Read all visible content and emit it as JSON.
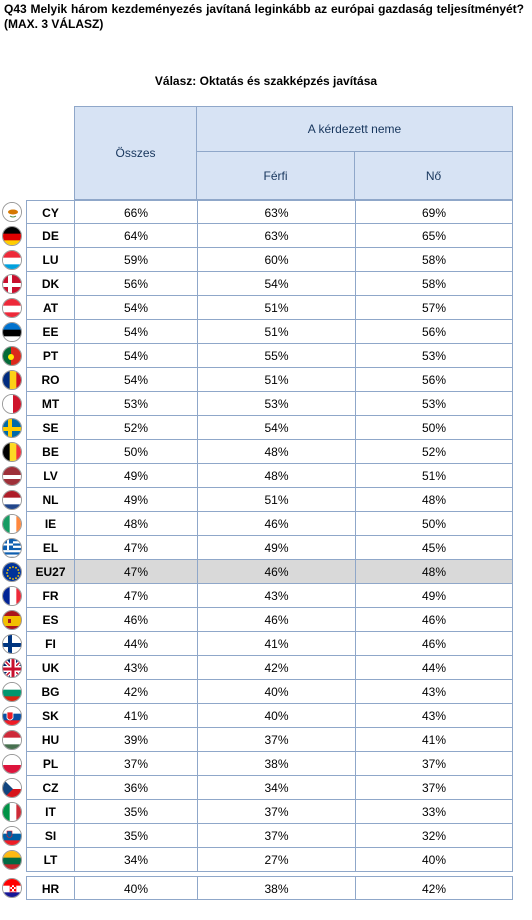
{
  "question": "Q43  Melyik  három  kezdeményezés  javítaná  leginkább  az  európai  gazdaság teljesítményét? (MAX. 3 VÁLASZ)",
  "subtitle": "Válasz: Oktatás és szakképzés javítása",
  "header": {
    "total": "Összes",
    "group": "A kérdezett neme",
    "male": "Férfi",
    "female": "Nő"
  },
  "rows": [
    {
      "code": "CY",
      "total": "66%",
      "male": "63%",
      "female": "69%",
      "flag_icon": "cyprus-flag-icon"
    },
    {
      "code": "DE",
      "total": "64%",
      "male": "63%",
      "female": "65%",
      "flag_icon": "germany-flag-icon"
    },
    {
      "code": "LU",
      "total": "59%",
      "male": "60%",
      "female": "58%",
      "flag_icon": "luxembourg-flag-icon"
    },
    {
      "code": "DK",
      "total": "56%",
      "male": "54%",
      "female": "58%",
      "flag_icon": "denmark-flag-icon"
    },
    {
      "code": "AT",
      "total": "54%",
      "male": "51%",
      "female": "57%",
      "flag_icon": "austria-flag-icon"
    },
    {
      "code": "EE",
      "total": "54%",
      "male": "51%",
      "female": "56%",
      "flag_icon": "estonia-flag-icon"
    },
    {
      "code": "PT",
      "total": "54%",
      "male": "55%",
      "female": "53%",
      "flag_icon": "portugal-flag-icon"
    },
    {
      "code": "RO",
      "total": "54%",
      "male": "51%",
      "female": "56%",
      "flag_icon": "romania-flag-icon"
    },
    {
      "code": "MT",
      "total": "53%",
      "male": "53%",
      "female": "53%",
      "flag_icon": "malta-flag-icon"
    },
    {
      "code": "SE",
      "total": "52%",
      "male": "54%",
      "female": "50%",
      "flag_icon": "sweden-flag-icon"
    },
    {
      "code": "BE",
      "total": "50%",
      "male": "48%",
      "female": "52%",
      "flag_icon": "belgium-flag-icon"
    },
    {
      "code": "LV",
      "total": "49%",
      "male": "48%",
      "female": "51%",
      "flag_icon": "latvia-flag-icon"
    },
    {
      "code": "NL",
      "total": "49%",
      "male": "51%",
      "female": "48%",
      "flag_icon": "netherlands-flag-icon"
    },
    {
      "code": "IE",
      "total": "48%",
      "male": "46%",
      "female": "50%",
      "flag_icon": "ireland-flag-icon"
    },
    {
      "code": "EL",
      "total": "47%",
      "male": "49%",
      "female": "45%",
      "flag_icon": "greece-flag-icon"
    },
    {
      "code": "EU27",
      "total": "47%",
      "male": "46%",
      "female": "48%",
      "flag_icon": "eu-flag-icon",
      "highlight": true
    },
    {
      "code": "FR",
      "total": "47%",
      "male": "43%",
      "female": "49%",
      "flag_icon": "france-flag-icon"
    },
    {
      "code": "ES",
      "total": "46%",
      "male": "46%",
      "female": "46%",
      "flag_icon": "spain-flag-icon"
    },
    {
      "code": "FI",
      "total": "44%",
      "male": "41%",
      "female": "46%",
      "flag_icon": "finland-flag-icon"
    },
    {
      "code": "UK",
      "total": "43%",
      "male": "42%",
      "female": "44%",
      "flag_icon": "uk-flag-icon"
    },
    {
      "code": "BG",
      "total": "42%",
      "male": "40%",
      "female": "43%",
      "flag_icon": "bulgaria-flag-icon"
    },
    {
      "code": "SK",
      "total": "41%",
      "male": "40%",
      "female": "43%",
      "flag_icon": "slovakia-flag-icon"
    },
    {
      "code": "HU",
      "total": "39%",
      "male": "37%",
      "female": "41%",
      "flag_icon": "hungary-flag-icon"
    },
    {
      "code": "PL",
      "total": "37%",
      "male": "38%",
      "female": "37%",
      "flag_icon": "poland-flag-icon"
    },
    {
      "code": "CZ",
      "total": "36%",
      "male": "34%",
      "female": "37%",
      "flag_icon": "czechia-flag-icon"
    },
    {
      "code": "IT",
      "total": "35%",
      "male": "37%",
      "female": "33%",
      "flag_icon": "italy-flag-icon"
    },
    {
      "code": "SI",
      "total": "35%",
      "male": "37%",
      "female": "32%",
      "flag_icon": "slovenia-flag-icon"
    },
    {
      "code": "LT",
      "total": "34%",
      "male": "27%",
      "female": "40%",
      "flag_icon": "lithuania-flag-icon"
    },
    {
      "code": "HR",
      "total": "40%",
      "male": "38%",
      "female": "42%",
      "flag_icon": "croatia-flag-icon",
      "separated": true
    }
  ]
}
